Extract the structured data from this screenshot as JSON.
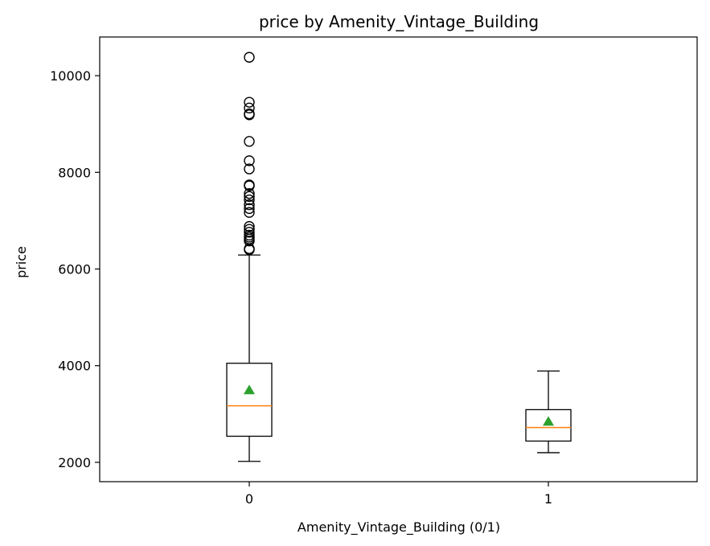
{
  "chart_data": {
    "type": "box",
    "title": "price by Amenity_Vintage_Building",
    "xlabel": "Amenity_Vintage_Building (0/1)",
    "ylabel": "price",
    "categories": [
      "0",
      "1"
    ],
    "ylim": [
      1600,
      10800
    ],
    "yticks": [
      2000,
      4000,
      6000,
      8000,
      10000
    ],
    "grid": false,
    "boxes": [
      {
        "category": "0",
        "whisker_low": 2020,
        "q1": 2540,
        "median": 3170,
        "q3": 4050,
        "whisker_high": 6290,
        "mean": 3490,
        "outliers": [
          6400,
          6420,
          6580,
          6620,
          6660,
          6700,
          6760,
          6820,
          6880,
          7170,
          7250,
          7330,
          7430,
          7500,
          7560,
          7720,
          7740,
          8070,
          8240,
          8640,
          9190,
          9210,
          9330,
          9450,
          10380
        ]
      },
      {
        "category": "1",
        "whisker_low": 2200,
        "q1": 2440,
        "median": 2720,
        "q3": 3090,
        "whisker_high": 3890,
        "mean": 2840,
        "outliers": []
      }
    ],
    "colors": {
      "box": "#000000",
      "median": "#ff7f0e",
      "mean": "#2ca02c",
      "outlier": "#000000"
    }
  }
}
